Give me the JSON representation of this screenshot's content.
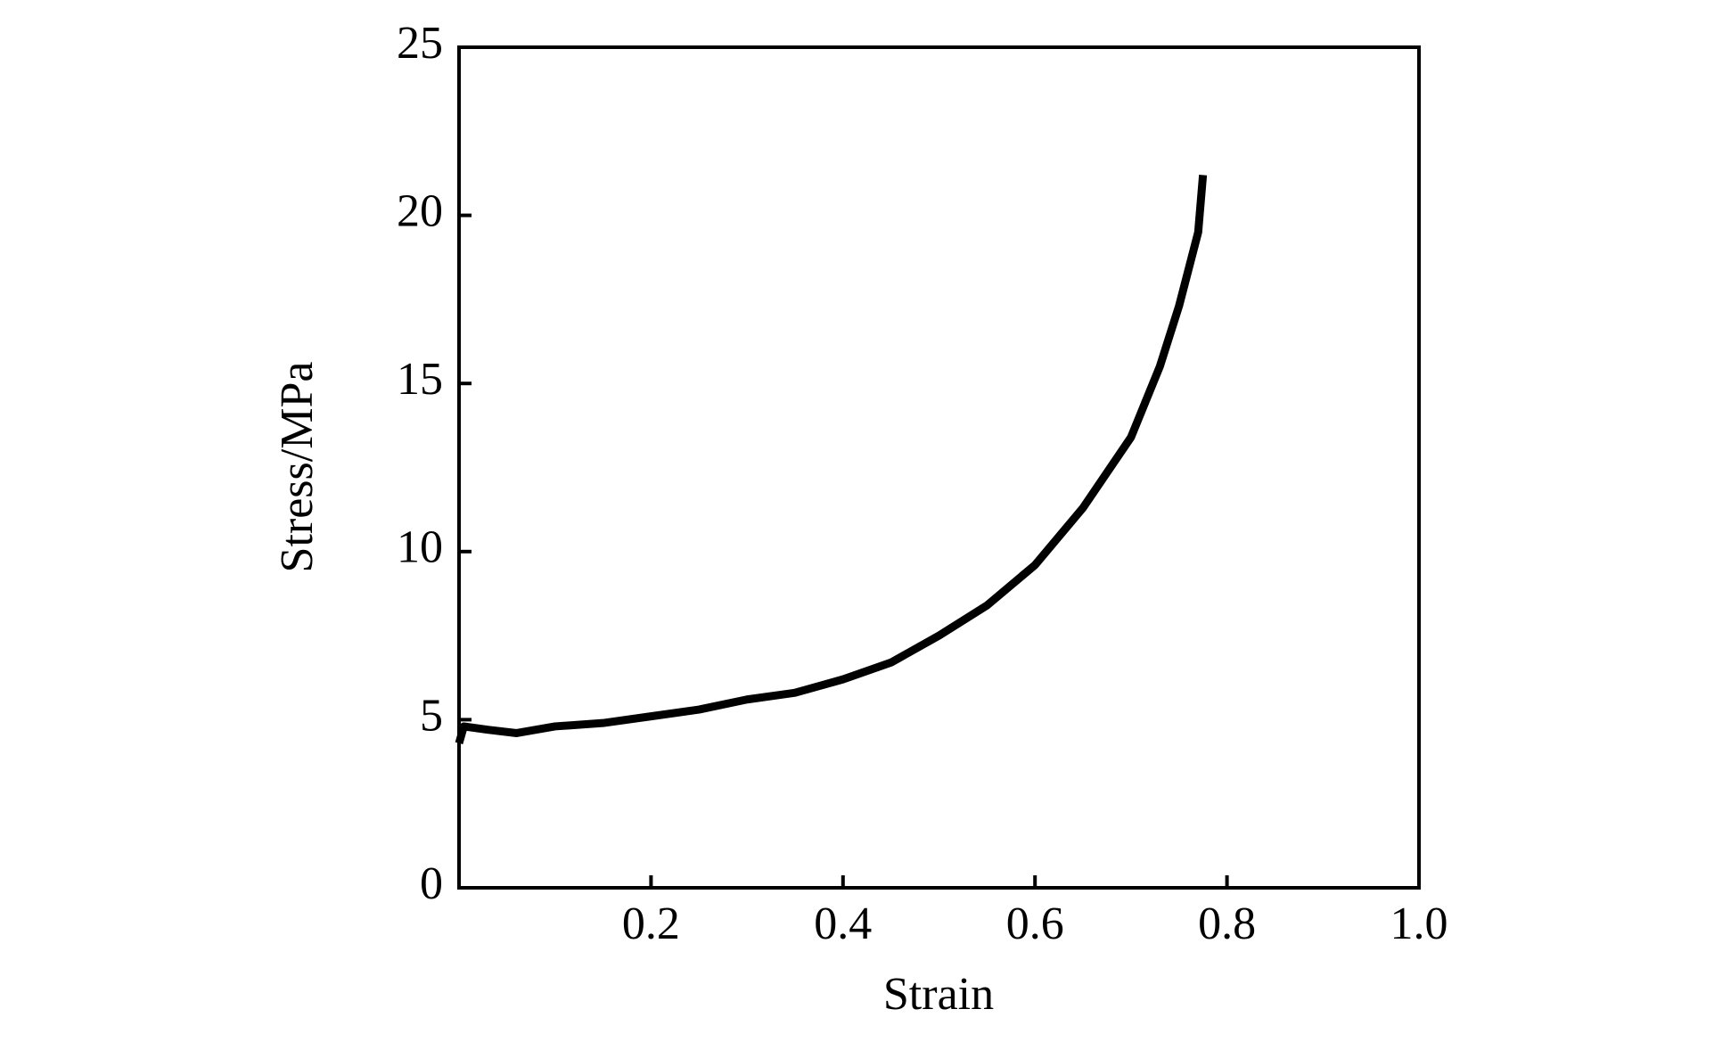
{
  "chart_data": {
    "type": "line",
    "x_label": "Strain",
    "y_label": "Stress/MPa",
    "x": [
      0,
      0.005,
      0.03,
      0.06,
      0.1,
      0.15,
      0.2,
      0.25,
      0.3,
      0.35,
      0.4,
      0.45,
      0.5,
      0.55,
      0.6,
      0.65,
      0.7,
      0.73,
      0.75,
      0.77,
      0.775
    ],
    "series": [
      {
        "color": "#000000",
        "values": [
          4.3,
          4.8,
          4.7,
          4.6,
          4.8,
          4.9,
          5.1,
          5.3,
          5.6,
          5.8,
          6.2,
          6.7,
          7.5,
          8.4,
          9.6,
          11.3,
          13.4,
          15.5,
          17.3,
          19.5,
          21.2
        ]
      }
    ],
    "xlim": [
      0,
      1
    ],
    "xticks": [
      0.2,
      0.4,
      0.6,
      0.8,
      {
        "value": 1,
        "label": "1.0"
      }
    ],
    "ylim": [
      0,
      25
    ],
    "yticks": [
      0,
      5,
      10,
      15,
      20,
      25
    ],
    "grid": false
  }
}
